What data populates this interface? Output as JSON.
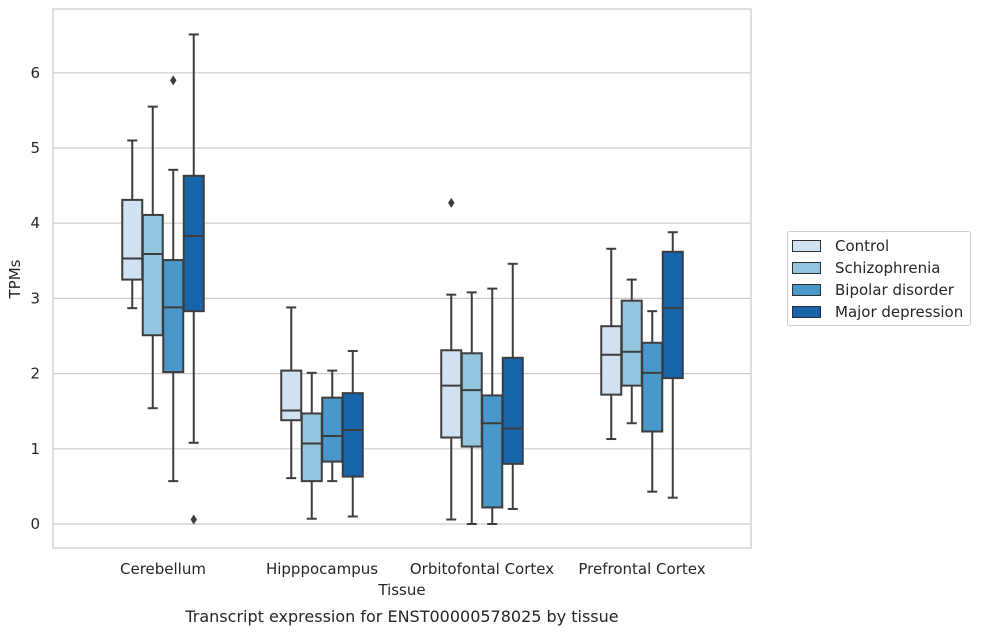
{
  "chart_data": {
    "type": "box",
    "title": "",
    "caption": "Transcript expression for ENST00000578025 by tissue",
    "xlabel": "Tissue",
    "ylabel": "TPMs",
    "ylim": [
      -0.3,
      6.85
    ],
    "yticks": [
      0,
      1,
      2,
      3,
      4,
      5,
      6
    ],
    "grid": "horizontal",
    "legend_position": "right",
    "categories": [
      "Cerebellum",
      "Hipppocampus",
      "Orbitofontal Cortex",
      "Prefrontal Cortex"
    ],
    "series": [
      {
        "name": "Control",
        "color": "#d0e1f2",
        "boxes": [
          {
            "whisker_low": 2.87,
            "q1": 3.25,
            "median": 3.53,
            "q3": 4.31,
            "whisker_high": 5.1,
            "outliers": []
          },
          {
            "whisker_low": 0.61,
            "q1": 1.38,
            "median": 1.51,
            "q3": 2.04,
            "whisker_high": 2.88,
            "outliers": []
          },
          {
            "whisker_low": 0.06,
            "q1": 1.15,
            "median": 1.84,
            "q3": 2.31,
            "whisker_high": 3.05,
            "outliers": [
              4.27
            ]
          },
          {
            "whisker_low": 1.13,
            "q1": 1.72,
            "median": 2.25,
            "q3": 2.63,
            "whisker_high": 3.66,
            "outliers": []
          }
        ]
      },
      {
        "name": "Schizophrenia",
        "color": "#94c4df",
        "boxes": [
          {
            "whisker_low": 1.54,
            "q1": 2.51,
            "median": 3.59,
            "q3": 4.11,
            "whisker_high": 5.55,
            "outliers": []
          },
          {
            "whisker_low": 0.07,
            "q1": 0.57,
            "median": 1.07,
            "q3": 1.47,
            "whisker_high": 2.01,
            "outliers": []
          },
          {
            "whisker_low": 0.0,
            "q1": 1.03,
            "median": 1.78,
            "q3": 2.27,
            "whisker_high": 3.08,
            "outliers": []
          },
          {
            "whisker_low": 1.34,
            "q1": 1.84,
            "median": 2.29,
            "q3": 2.97,
            "whisker_high": 3.25,
            "outliers": []
          }
        ]
      },
      {
        "name": "Bipolar disorder",
        "color": "#4a98c9",
        "boxes": [
          {
            "whisker_low": 0.57,
            "q1": 2.02,
            "median": 2.88,
            "q3": 3.51,
            "whisker_high": 4.71,
            "outliers": [
              5.9
            ]
          },
          {
            "whisker_low": 0.57,
            "q1": 0.83,
            "median": 1.17,
            "q3": 1.68,
            "whisker_high": 2.04,
            "outliers": []
          },
          {
            "whisker_low": 0.0,
            "q1": 0.22,
            "median": 1.34,
            "q3": 1.71,
            "whisker_high": 3.13,
            "outliers": []
          },
          {
            "whisker_low": 0.43,
            "q1": 1.23,
            "median": 2.01,
            "q3": 2.41,
            "whisker_high": 2.83,
            "outliers": []
          }
        ]
      },
      {
        "name": "Major depression",
        "color": "#1764ab",
        "boxes": [
          {
            "whisker_low": 1.08,
            "q1": 2.83,
            "median": 3.83,
            "q3": 4.63,
            "whisker_high": 6.51,
            "outliers": [
              0.06
            ]
          },
          {
            "whisker_low": 0.1,
            "q1": 0.63,
            "median": 1.25,
            "q3": 1.74,
            "whisker_high": 2.3,
            "outliers": []
          },
          {
            "whisker_low": 0.2,
            "q1": 0.8,
            "median": 1.27,
            "q3": 2.21,
            "whisker_high": 3.46,
            "outliers": []
          },
          {
            "whisker_low": 0.35,
            "q1": 1.94,
            "median": 2.87,
            "q3": 3.62,
            "whisker_high": 3.88,
            "outliers": []
          }
        ]
      }
    ]
  }
}
